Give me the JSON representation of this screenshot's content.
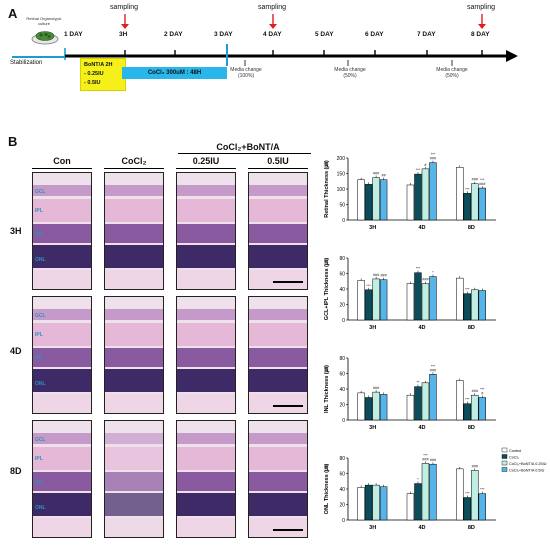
{
  "panel_a": {
    "label": "A",
    "icon_text": "Retinal Organotypic culture",
    "stabilization": "Stabilization",
    "ticks": [
      "1 DAY",
      "3H",
      "2 DAY",
      "3 DAY",
      "4 DAY",
      "5 DAY",
      "6 DAY",
      "7 DAY",
      "8 DAY"
    ],
    "sampling": [
      "sampling",
      "sampling",
      "sampling"
    ],
    "bont_box": [
      "BoNT/A 2H",
      "- 0.25IU",
      "- 0.5IU"
    ],
    "cocl2_box": "CoCl₂ 300uM : 48H",
    "media_changes": [
      "Media change (100%)",
      "Media change (50%)",
      "Media change (50%)"
    ],
    "colors": {
      "stabilization": "#1e9bd7",
      "bont": "#f5ef1a",
      "cocl2": "#29b6ea"
    }
  },
  "panel_b": {
    "label": "B",
    "group_header": "CoCl₂+BoNT/A",
    "columns": [
      "Con",
      "CoCl₂",
      "0.25IU",
      "0.5IU"
    ],
    "rows": [
      "3H",
      "4D",
      "8D"
    ],
    "layers": [
      "GCL",
      "IPL",
      "INL",
      "ONL"
    ]
  },
  "chart_data": [
    {
      "type": "bar",
      "ylabel": "Retinal Thickness (㎛)",
      "categories": [
        "3H",
        "4D",
        "8D"
      ],
      "ylim": [
        0,
        200
      ],
      "yticks": [
        0,
        50,
        100,
        150,
        200
      ],
      "series": [
        {
          "name": "Control",
          "values": [
            130,
            113,
            170
          ]
        },
        {
          "name": "CoCl₂",
          "values": [
            115,
            148,
            86
          ]
        },
        {
          "name": "CoCl₂+BoNT/A 0.25IU",
          "values": [
            137,
            165,
            117
          ]
        },
        {
          "name": "CoCl₂+BoNT/A 0.5IU",
          "values": [
            130,
            185,
            103
          ]
        }
      ],
      "annotations": [
        {
          "category": 0,
          "series": 2,
          "text": "###"
        },
        {
          "category": 0,
          "series": 3,
          "text": "##"
        },
        {
          "category": 1,
          "series": 1,
          "text": "***"
        },
        {
          "category": 1,
          "series": 2,
          "text": "#"
        },
        {
          "category": 1,
          "series": 3,
          "text": "***\n###"
        },
        {
          "category": 2,
          "series": 1,
          "text": "***"
        },
        {
          "category": 2,
          "series": 2,
          "text": "###"
        },
        {
          "category": 2,
          "series": 3,
          "text": "***\n###"
        }
      ]
    },
    {
      "type": "bar",
      "ylabel": "GCL+IPL Thickness (㎛)",
      "categories": [
        "3H",
        "4D",
        "8D"
      ],
      "ylim": [
        0,
        80
      ],
      "yticks": [
        0,
        20,
        40,
        60,
        80
      ],
      "series": [
        {
          "name": "Control",
          "values": [
            51,
            47,
            54
          ]
        },
        {
          "name": "CoCl₂",
          "values": [
            39,
            61,
            34
          ]
        },
        {
          "name": "CoCl₂+BoNT/A 0.25IU",
          "values": [
            53,
            47,
            39
          ]
        },
        {
          "name": "CoCl₂+BoNT/A 0.5IU",
          "values": [
            52,
            56,
            38
          ]
        }
      ],
      "annotations": [
        {
          "category": 0,
          "series": 1,
          "text": "***"
        },
        {
          "category": 0,
          "series": 2,
          "text": "###"
        },
        {
          "category": 0,
          "series": 3,
          "text": "###"
        },
        {
          "category": 1,
          "series": 1,
          "text": "***"
        },
        {
          "category": 1,
          "series": 2,
          "text": "###"
        },
        {
          "category": 1,
          "series": 3,
          "text": "*"
        },
        {
          "category": 2,
          "series": 1,
          "text": "***"
        }
      ]
    },
    {
      "type": "bar",
      "ylabel": "INL Thickness (㎛)",
      "categories": [
        "3H",
        "4D",
        "8D"
      ],
      "ylim": [
        0,
        80
      ],
      "yticks": [
        0,
        20,
        40,
        60,
        80
      ],
      "series": [
        {
          "name": "Control",
          "values": [
            35,
            32,
            51
          ]
        },
        {
          "name": "CoCl₂",
          "values": [
            29,
            43,
            21
          ]
        },
        {
          "name": "CoCl₂+BoNT/A 0.25IU",
          "values": [
            36,
            48,
            32
          ]
        },
        {
          "name": "CoCl₂+BoNT/A 0.5IU",
          "values": [
            33,
            59,
            29
          ]
        }
      ],
      "annotations": [
        {
          "category": 0,
          "series": 2,
          "text": "###"
        },
        {
          "category": 1,
          "series": 1,
          "text": "**"
        },
        {
          "category": 1,
          "series": 3,
          "text": "***\n###"
        },
        {
          "category": 2,
          "series": 1,
          "text": "***"
        },
        {
          "category": 2,
          "series": 2,
          "text": "###"
        },
        {
          "category": 2,
          "series": 3,
          "text": "***\n#"
        }
      ]
    },
    {
      "type": "bar",
      "ylabel": "ONL Thickness (㎛)",
      "categories": [
        "3H",
        "4D",
        "8D"
      ],
      "ylim": [
        0,
        80
      ],
      "yticks": [
        0,
        20,
        40,
        60,
        80
      ],
      "legend": "top-right",
      "series": [
        {
          "name": "Control",
          "values": [
            42,
            34,
            66
          ]
        },
        {
          "name": "CoCl₂",
          "values": [
            45,
            47,
            29
          ]
        },
        {
          "name": "CoCl₂+BoNT/A 0.25IU",
          "values": [
            45,
            73,
            64
          ]
        },
        {
          "name": "CoCl₂+BoNT/A 0.5IU",
          "values": [
            43,
            72,
            34
          ]
        }
      ],
      "annotations": [
        {
          "category": 1,
          "series": 1,
          "text": "*"
        },
        {
          "category": 1,
          "series": 2,
          "text": "***\n###"
        },
        {
          "category": 1,
          "series": 3,
          "text": "###"
        },
        {
          "category": 2,
          "series": 1,
          "text": "***"
        },
        {
          "category": 2,
          "series": 2,
          "text": "###"
        },
        {
          "category": 2,
          "series": 3,
          "text": "***"
        }
      ]
    }
  ],
  "chart_colors": [
    "#ffffff",
    "#0b4d5a",
    "#bfeee3",
    "#56b4e9"
  ]
}
